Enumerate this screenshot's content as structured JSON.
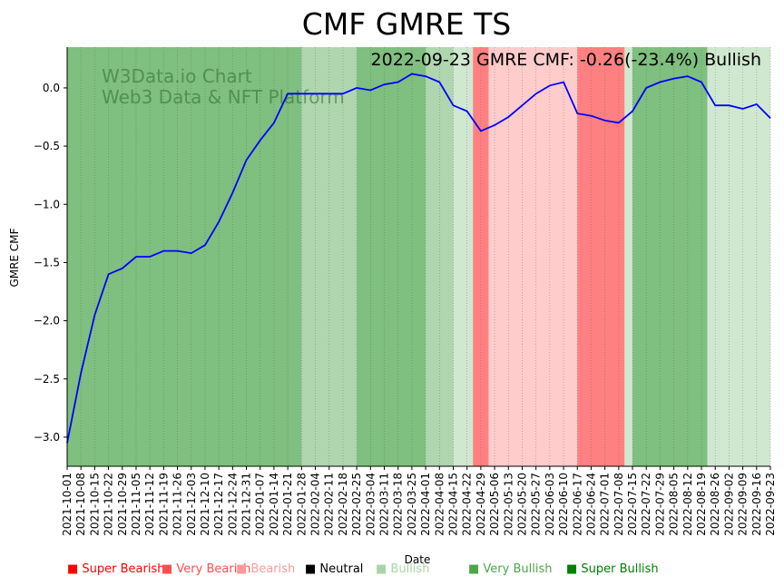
{
  "chart_data": {
    "type": "line",
    "title": "CMF GMRE TS",
    "annotation": "2022-09-23 GMRE CMF: -0.26(-23.4%) Bullish",
    "watermark": [
      "W3Data.io Chart",
      "Web3 Data & NFT Platform"
    ],
    "xlabel": "Date",
    "ylabel": "GMRE CMF",
    "ylim": [
      -3.25,
      0.35
    ],
    "yticks": [
      0.0,
      -0.5,
      -1.0,
      -1.5,
      -2.0,
      -2.5,
      -3.0
    ],
    "ytick_labels": [
      "0.0",
      "−0.5",
      "−1.0",
      "−1.5",
      "−2.0",
      "−2.5",
      "−3.0"
    ],
    "x_dates": [
      "2021-10-01",
      "2021-10-08",
      "2021-10-15",
      "2021-10-22",
      "2021-10-29",
      "2021-11-05",
      "2021-11-12",
      "2021-11-19",
      "2021-11-26",
      "2021-12-03",
      "2021-12-10",
      "2021-12-17",
      "2021-12-24",
      "2021-12-31",
      "2022-01-07",
      "2022-01-14",
      "2022-01-21",
      "2022-01-28",
      "2022-02-04",
      "2022-02-11",
      "2022-02-18",
      "2022-02-25",
      "2022-03-04",
      "2022-03-11",
      "2022-03-18",
      "2022-03-25",
      "2022-04-01",
      "2022-04-08",
      "2022-04-15",
      "2022-04-22",
      "2022-04-29",
      "2022-05-06",
      "2022-05-13",
      "2022-05-20",
      "2022-05-27",
      "2022-06-03",
      "2022-06-10",
      "2022-06-17",
      "2022-06-24",
      "2022-07-01",
      "2022-07-08",
      "2022-07-15",
      "2022-07-22",
      "2022-07-29",
      "2022-08-05",
      "2022-08-12",
      "2022-08-19",
      "2022-08-26",
      "2022-09-02",
      "2022-09-09",
      "2022-09-16",
      "2022-09-23"
    ],
    "series": [
      {
        "name": "GMRE CMF",
        "color": "#0000ff",
        "values": [
          -3.05,
          -2.45,
          -1.95,
          -1.6,
          -1.55,
          -1.45,
          -1.45,
          -1.4,
          -1.4,
          -1.42,
          -1.35,
          -1.15,
          -0.9,
          -0.62,
          -0.45,
          -0.3,
          -0.05,
          -0.05,
          -0.05,
          -0.05,
          -0.05,
          0.0,
          -0.02,
          0.03,
          0.05,
          0.12,
          0.1,
          0.05,
          -0.15,
          -0.2,
          -0.37,
          -0.32,
          -0.25,
          -0.15,
          -0.05,
          0.02,
          0.05,
          -0.22,
          -0.24,
          -0.28,
          -0.3,
          -0.2,
          0.0,
          0.05,
          0.08,
          0.1,
          0.05,
          -0.15,
          -0.15,
          -0.18,
          -0.14,
          -0.26
        ]
      }
    ],
    "regime_colors": {
      "super_bullish": "#7fbf7f",
      "bullish": "#afd6af",
      "light_bullish": "#d0e8d0",
      "bearish": "#ffcccc",
      "very_bearish": "#ff8080"
    },
    "regimes": [
      {
        "start": "2021-10-01",
        "end": "2022-01-28",
        "level": "super_bullish"
      },
      {
        "start": "2022-01-28",
        "end": "2022-02-25",
        "level": "bullish"
      },
      {
        "start": "2022-02-25",
        "end": "2022-04-01",
        "level": "super_bullish"
      },
      {
        "start": "2022-04-01",
        "end": "2022-04-15",
        "level": "bullish"
      },
      {
        "start": "2022-04-15",
        "end": "2022-04-25",
        "level": "light_bullish"
      },
      {
        "start": "2022-04-25",
        "end": "2022-05-03",
        "level": "very_bearish"
      },
      {
        "start": "2022-05-03",
        "end": "2022-06-17",
        "level": "bearish"
      },
      {
        "start": "2022-06-17",
        "end": "2022-07-11",
        "level": "very_bearish"
      },
      {
        "start": "2022-07-11",
        "end": "2022-07-15",
        "level": "light_bullish"
      },
      {
        "start": "2022-07-15",
        "end": "2022-08-22",
        "level": "super_bullish"
      },
      {
        "start": "2022-08-22",
        "end": "2022-09-23",
        "level": "light_bullish"
      }
    ],
    "legend": [
      {
        "label": "Super Bearish",
        "color": "#ff0000"
      },
      {
        "label": "Very Bearish",
        "color": "#ff4d4d"
      },
      {
        "label": "Bearish",
        "color": "#ff9999"
      },
      {
        "label": "Neutral",
        "color": "#000000"
      },
      {
        "label": "Bullish",
        "color": "#a8d5a8"
      },
      {
        "label": "Very Bullish",
        "color": "#4ca64c"
      },
      {
        "label": "Super Bullish",
        "color": "#008000"
      }
    ]
  }
}
